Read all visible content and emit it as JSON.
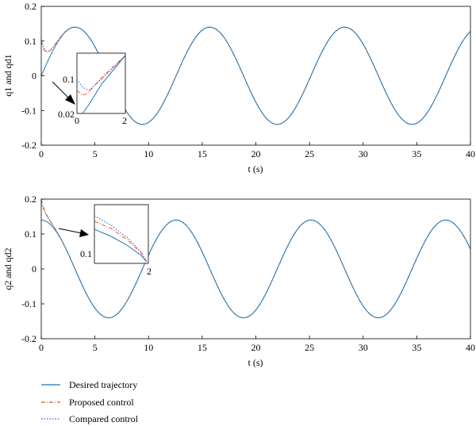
{
  "chart_data": [
    {
      "type": "line",
      "xlabel": "t (s)",
      "ylabel": "q1 and qd1",
      "xlim": [
        0,
        40
      ],
      "ylim": [
        -0.2,
        0.2
      ],
      "xticks": [
        "0",
        "5",
        "10",
        "15",
        "20",
        "25",
        "30",
        "35",
        "40"
      ],
      "yticks": [
        "-0.2",
        "-0.1",
        "0",
        "0.1",
        "0.2"
      ],
      "series": [
        {
          "name": "Desired trajectory",
          "function": "0.14*sin(0.5*t)",
          "color": "#1f77b4",
          "style": "solid"
        },
        {
          "name": "Proposed control",
          "start": 0.1,
          "color": "#e8552b",
          "style": "dashdot"
        },
        {
          "name": "Compared control",
          "start": 0.11,
          "color": "#3355cc",
          "style": "dotted"
        }
      ],
      "inset": {
        "xlim": [
          0,
          2
        ],
        "xticks": [
          "0",
          "2"
        ],
        "ylabels": [
          "0.1",
          "0.02"
        ]
      }
    },
    {
      "type": "line",
      "xlabel": "t (s)",
      "ylabel": "q2 and qd2",
      "xlim": [
        0,
        40
      ],
      "ylim": [
        -0.2,
        0.2
      ],
      "xticks": [
        "0",
        "5",
        "10",
        "15",
        "20",
        "25",
        "30",
        "35",
        "40"
      ],
      "yticks": [
        "-0.2",
        "-0.1",
        "0",
        "0.1",
        "0.2"
      ],
      "series": [
        {
          "name": "Desired trajectory",
          "function": "0.14*cos(0.5*t)",
          "color": "#1f77b4",
          "style": "solid"
        },
        {
          "name": "Proposed control",
          "start": 0.2,
          "color": "#e8552b",
          "style": "dashdot"
        },
        {
          "name": "Compared control",
          "start": 0.19,
          "color": "#3355cc",
          "style": "dotted"
        }
      ],
      "inset": {
        "xticks": [
          "2"
        ],
        "ylabels": [
          "0.1"
        ]
      }
    }
  ],
  "legend": {
    "placement": "bottom-left",
    "items": [
      {
        "label": "Desired trajectory",
        "color": "#1f77b4",
        "style": "solid"
      },
      {
        "label": "Proposed control",
        "color": "#e8552b",
        "style": "dashdot"
      },
      {
        "label": "Compared control",
        "color": "#3355cc",
        "style": "dotted"
      }
    ]
  }
}
